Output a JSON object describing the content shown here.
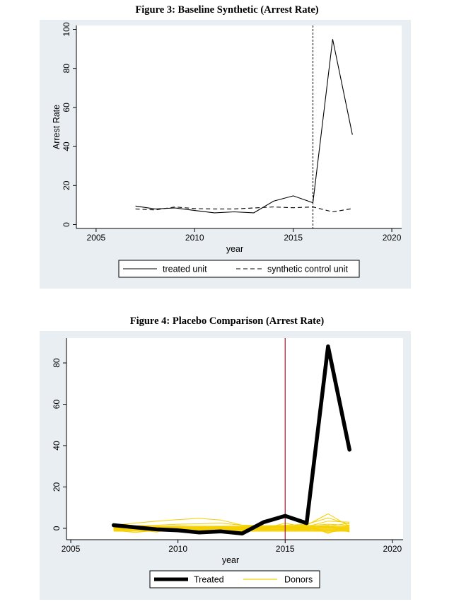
{
  "figures": [
    {
      "title": "Figure 3: Baseline Synthetic (Arrest Rate)"
    },
    {
      "title": "Figure 4: Placebo Comparison (Arrest Rate)"
    }
  ],
  "colors": {
    "panel_bg": "#e9eef2",
    "plot_bg": "#ffffff",
    "donors": "#f5d000",
    "vline2": "#9b1c2a",
    "black": "#000000"
  },
  "chart_data": [
    {
      "type": "line",
      "title": "Figure 3: Baseline Synthetic (Arrest Rate)",
      "xlabel": "year",
      "ylabel": "Arrest Rate",
      "xlim": [
        2004,
        2020.5
      ],
      "ylim": [
        -2,
        102
      ],
      "xticks": [
        2005,
        2010,
        2015,
        2020
      ],
      "yticks": [
        0,
        20,
        40,
        60,
        80,
        100
      ],
      "vline": 2016,
      "grid": false,
      "legend_position": "bottom",
      "x": [
        2007,
        2008,
        2009,
        2010,
        2011,
        2012,
        2013,
        2014,
        2015,
        2016,
        2017,
        2018
      ],
      "series": [
        {
          "name": "treated unit",
          "style": "solid",
          "values": [
            9.5,
            8,
            8.5,
            7.2,
            6,
            6.5,
            6,
            12,
            14.7,
            11.2,
            95,
            46
          ]
        },
        {
          "name": "synthetic control unit",
          "style": "dashed",
          "values": [
            8,
            7.5,
            9,
            8.2,
            8,
            8,
            8.5,
            9,
            8.6,
            9,
            6.5,
            8.2
          ]
        }
      ]
    },
    {
      "type": "line",
      "title": "Figure 4: Placebo Comparison (Arrest Rate)",
      "xlabel": "year",
      "ylabel": "",
      "xlim": [
        2004.8,
        2020.5
      ],
      "ylim": [
        -5.5,
        92
      ],
      "xticks": [
        2005,
        2010,
        2015,
        2020
      ],
      "yticks": [
        0,
        20,
        40,
        60,
        80
      ],
      "vline": 2015,
      "grid": false,
      "legend_position": "bottom",
      "x": [
        2007,
        2008,
        2009,
        2010,
        2011,
        2012,
        2013,
        2014,
        2015,
        2016,
        2017,
        2018
      ],
      "series": [
        {
          "name": "Treated",
          "style": "thick",
          "values": [
            1.5,
            0.5,
            -0.5,
            -1,
            -2,
            -1.5,
            -2.5,
            3,
            6,
            2.5,
            88,
            38
          ]
        },
        {
          "name": "Donors",
          "style": "donor",
          "lines": [
            [
              1.5,
              2.5,
              3.5,
              4.2,
              4.8,
              4,
              1.5,
              1,
              0.8,
              1.5,
              7,
              1
            ],
            [
              0.8,
              1.2,
              1.5,
              2,
              2.2,
              2.5,
              1.5,
              1.2,
              1.4,
              2,
              5,
              2
            ],
            [
              0.2,
              -0.5,
              -1.8,
              0.5,
              0.3,
              0.8,
              1,
              0.5,
              0.2,
              0.8,
              3.5,
              3
            ],
            [
              -1,
              -2,
              -1,
              -0.5,
              -1.2,
              -0.8,
              -1,
              -0.5,
              1.5,
              1.8,
              -2.5,
              1.5
            ],
            [
              -0.5,
              -0.5,
              -0.3,
              -0.2,
              -0.5,
              -0.3,
              -0.2,
              -0.2,
              2.5,
              0.5,
              1.5,
              -1.5
            ],
            [
              1,
              0.5,
              0.5,
              0.2,
              0.5,
              0.6,
              0.2,
              0.5,
              0.5,
              0.5,
              1,
              2.5
            ],
            [
              0.5,
              0,
              0.5,
              0,
              0.2,
              0,
              0.5,
              0,
              0.3,
              0,
              -1,
              0
            ],
            [
              -1,
              -0.8,
              -0.5,
              -1,
              -0.8,
              -0.6,
              -0.5,
              -0.8,
              -0.7,
              -1,
              -1.5,
              -1
            ],
            [
              1.2,
              0.8,
              1,
              1.2,
              0.9,
              1,
              1.1,
              0.9,
              1,
              1.2,
              2,
              1.4
            ],
            [
              -0.2,
              0.3,
              0,
              -0.3,
              0.1,
              -0.2,
              0,
              0.2,
              0,
              -0.3,
              0.5,
              0.3
            ],
            [
              0,
              0.8,
              0.2,
              0.6,
              -0.2,
              0.3,
              0.4,
              -0.3,
              0.9,
              0.4,
              -2,
              -0.5
            ],
            [
              -0.8,
              -0.2,
              -0.9,
              -0.4,
              -1,
              -0.3,
              -0.6,
              -0.5,
              -0.4,
              -0.6,
              0.8,
              -1.8
            ]
          ]
        }
      ]
    }
  ]
}
